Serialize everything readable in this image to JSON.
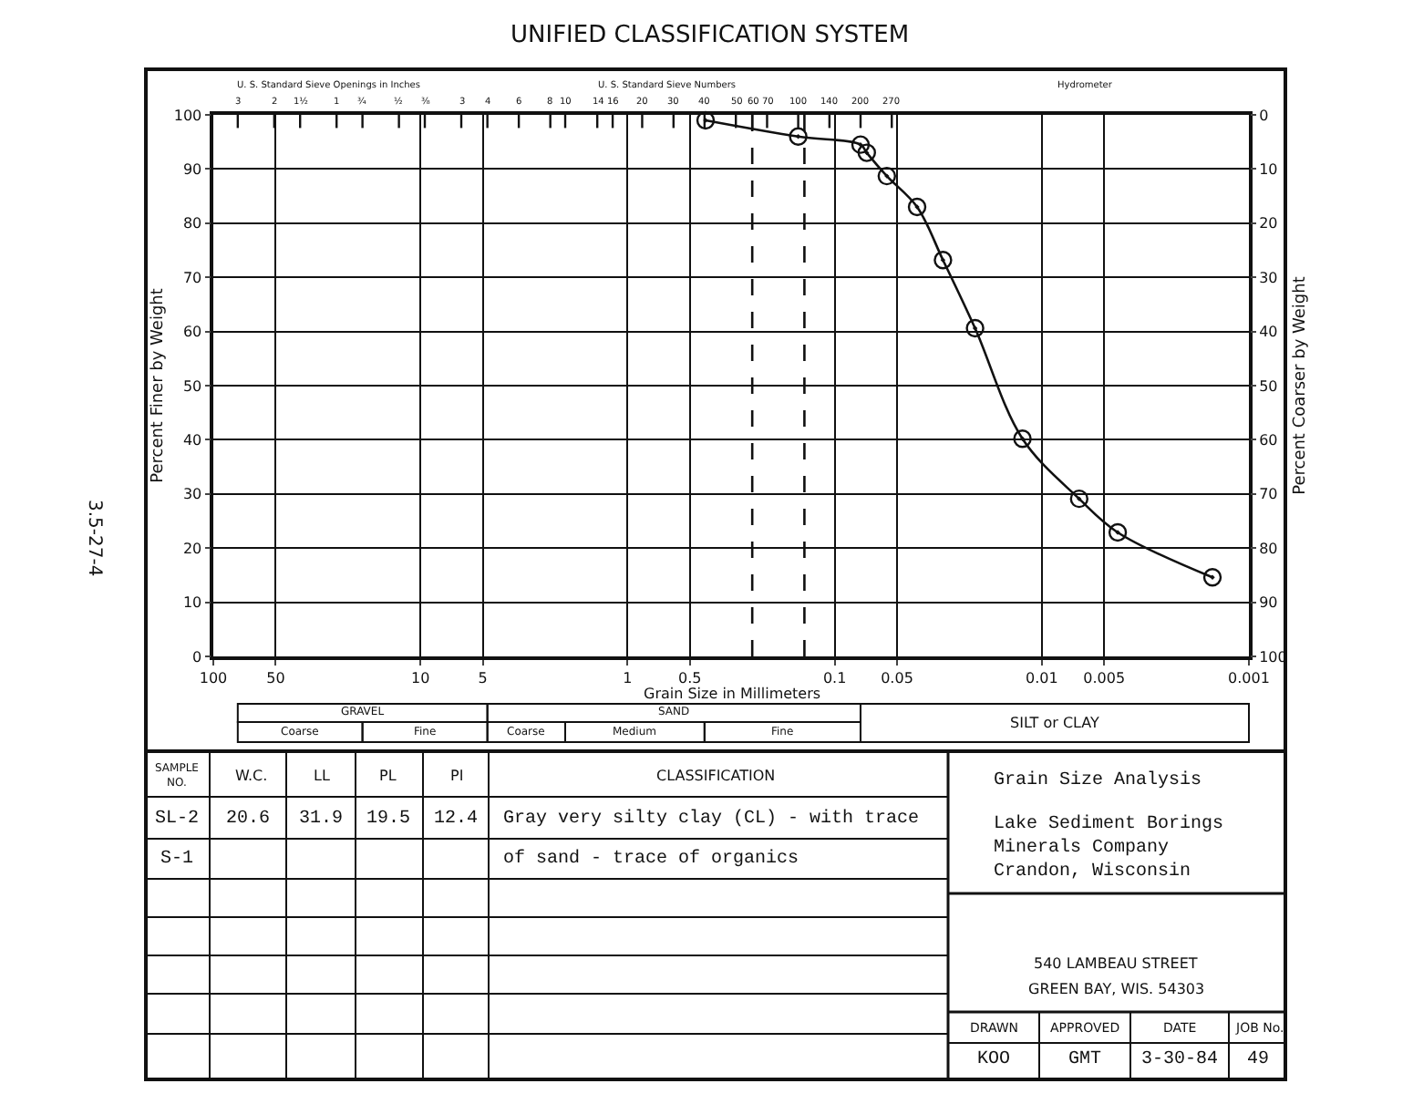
{
  "chart_data": {
    "type": "line",
    "title": "UNIFIED CLASSIFICATION SYSTEM",
    "xlabel": "Grain Size in Millimeters",
    "ylabel": "Percent Finer by Weight",
    "y2label": "Percent Coarser by Weight",
    "x": [
      0.42,
      0.15,
      0.075,
      0.07,
      0.056,
      0.04,
      0.03,
      0.021,
      0.0124,
      0.0066,
      0.0043,
      0.0015
    ],
    "series": [
      {
        "color": "#111111",
        "values": [
          99,
          96,
          94.5,
          93,
          88.7,
          83,
          73.2,
          60.6,
          40.2,
          29.1,
          22.9,
          14.6
        ]
      }
    ],
    "marker": "circle",
    "line_style": "solid",
    "log": "x",
    "grid": true,
    "xlim": [
      100,
      0.001
    ],
    "xticks": [
      100,
      50,
      10,
      5,
      1,
      0.5,
      0.1,
      0.05,
      0.01,
      0.005,
      0.001
    ],
    "ylim": [
      0,
      100
    ],
    "yticks": [
      0,
      10,
      20,
      30,
      40,
      50,
      60,
      70,
      80,
      90,
      100
    ],
    "y2lim": [
      100,
      0
    ],
    "y2ticks": [
      0,
      10,
      20,
      30,
      40,
      50,
      60,
      70,
      80,
      90,
      100
    ],
    "ref_lines": [
      {
        "axis": "x",
        "value": 0.25,
        "line_style": "dashed",
        "color": "#111111"
      },
      {
        "axis": "x",
        "value": 0.14,
        "line_style": "dashed",
        "color": "#111111"
      }
    ],
    "annotations": [
      "U. S. Standard Sieve Openings in Inches",
      "U. S. Standard Sieve Numbers",
      "Hydrometer",
      "3",
      "2",
      "1½",
      "1",
      "¾",
      "½",
      "⅜",
      "3",
      "4",
      "6",
      "8",
      "10",
      "14",
      "16",
      "20",
      "30",
      "40",
      "50",
      "60",
      "70",
      "100",
      "140",
      "200",
      "270",
      "GRAVEL",
      "Coarse",
      "Fine",
      "SAND",
      "Coarse",
      "Medium",
      "Fine",
      "SILT or CLAY",
      "3.5-27-4",
      "SAMPLE NO.",
      "W.C.",
      "LL",
      "PL",
      "PI",
      "CLASSIFICATION",
      "SL-2",
      "20.6",
      "31.9",
      "19.5",
      "12.4",
      "Gray very silty clay (CL) - with trace",
      "S-1",
      "of sand - trace of organics",
      "Grain Size Analysis",
      "Lake Sediment Borings",
      "Minerals Company",
      "Crandon, Wisconsin",
      "540 LAMBEAU STREET",
      "GREEN BAY, WIS. 54303",
      "DRAWN",
      "APPROVED",
      "DATE",
      "JOB No.",
      "KOO",
      "GMT",
      "3-30-84",
      "49"
    ]
  }
}
